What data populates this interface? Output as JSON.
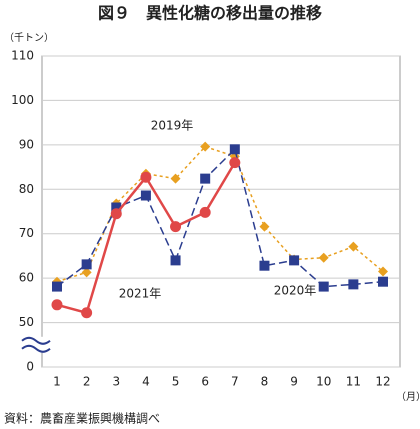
{
  "chart_data": {
    "type": "line",
    "title": "図９　異性化糖の移出量の推移",
    "y_unit": "（千トン）",
    "x_unit": "（月）",
    "source": "資料：農畜産業振興機構調べ",
    "categories": [
      "1",
      "2",
      "3",
      "4",
      "5",
      "6",
      "7",
      "8",
      "9",
      "10",
      "11",
      "12"
    ],
    "axis_break": true,
    "ylim": [
      0,
      110
    ],
    "yticks": [
      0,
      50,
      60,
      70,
      80,
      90,
      100,
      110
    ],
    "grid": true,
    "series": [
      {
        "name": "2019年",
        "color": "#e8a020",
        "dash": true,
        "marker": "diamond",
        "values": [
          59.2,
          61.3,
          76.8,
          83.5,
          82.4,
          89.6,
          87.4,
          71.6,
          64.2,
          64.6,
          67.1,
          61.5
        ]
      },
      {
        "name": "2020年",
        "color": "#2b3d8f",
        "dash": true,
        "marker": "square",
        "values": [
          58.1,
          63.1,
          75.9,
          78.6,
          64.0,
          82.4,
          89.0,
          62.8,
          64.0,
          58.1,
          58.6,
          59.2
        ]
      },
      {
        "name": "2021年",
        "color": "#e04848",
        "dash": false,
        "marker": "circle",
        "values": [
          54.0,
          52.2,
          74.5,
          82.7,
          71.6,
          74.8,
          86.0,
          null,
          null,
          null,
          null,
          null
        ]
      }
    ]
  }
}
